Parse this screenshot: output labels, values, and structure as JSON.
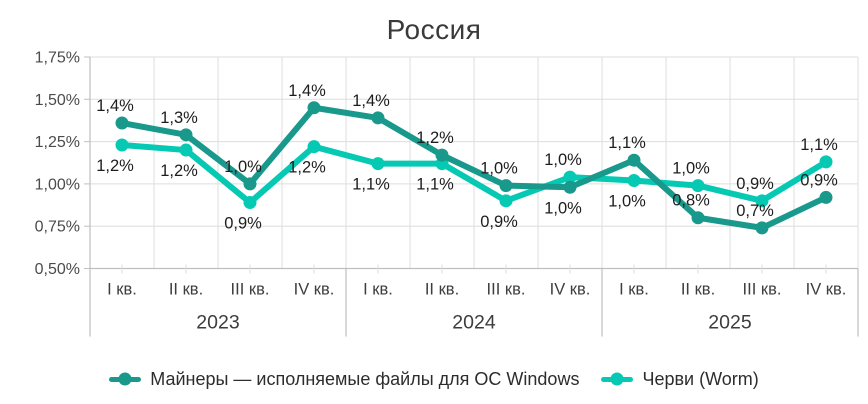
{
  "chart_data": {
    "type": "line",
    "title": "Россия",
    "xlabel": "",
    "ylabel": "",
    "ylim": [
      0.5,
      1.75
    ],
    "ytick_step": 0.25,
    "ytick_labels": [
      "0,50%",
      "0,75%",
      "1,00%",
      "1,25%",
      "1,50%",
      "1,75%"
    ],
    "quarter_labels": [
      "I кв.",
      "II кв.",
      "III кв.",
      "IV кв."
    ],
    "year_labels": [
      "2023",
      "2024",
      "2025"
    ],
    "categories": [
      "I кв. 2023",
      "II кв. 2023",
      "III кв. 2023",
      "IV кв. 2023",
      "I кв. 2024",
      "II кв. 2024",
      "III кв. 2024",
      "IV кв. 2024",
      "I кв. 2025",
      "II кв. 2025",
      "III кв. 2025",
      "IV кв. 2025"
    ],
    "grid": true,
    "legend_position": "bottom",
    "series": [
      {
        "name": "Майнеры — исполняемые файлы для ОС Windows",
        "color": "#18998B",
        "values": [
          1.4,
          1.3,
          1.0,
          1.4,
          1.4,
          1.2,
          1.0,
          1.0,
          1.1,
          0.8,
          0.7,
          0.9
        ],
        "labels": [
          "1,4%",
          "1,3%",
          "1,0%",
          "1,4%",
          "1,4%",
          "1,2%",
          "1,0%",
          "1,0%",
          "1,1%",
          "0,8%",
          "0,7%",
          "0,9%"
        ],
        "plot_values": [
          1.36,
          1.29,
          1.0,
          1.45,
          1.39,
          1.17,
          0.99,
          0.98,
          1.14,
          0.8,
          0.74,
          0.92
        ],
        "label_positions": [
          "above",
          "above",
          "above",
          "above",
          "above",
          "above",
          "above",
          "below",
          "above",
          "above",
          "above",
          "above"
        ]
      },
      {
        "name": "Черви (Worm)",
        "color": "#06C9B4",
        "values": [
          1.2,
          1.2,
          0.9,
          1.2,
          1.1,
          1.1,
          0.9,
          1.0,
          1.0,
          1.0,
          0.9,
          1.1
        ],
        "labels": [
          "1,2%",
          "1,2%",
          "0,9%",
          "1,2%",
          "1,1%",
          "1,1%",
          "0,9%",
          "1,0%",
          "1,0%",
          "1,0%",
          "0,9%",
          "1,1%"
        ],
        "plot_values": [
          1.23,
          1.2,
          0.89,
          1.22,
          1.12,
          1.12,
          0.9,
          1.04,
          1.02,
          0.99,
          0.9,
          1.13
        ],
        "label_positions": [
          "below",
          "below",
          "below",
          "below",
          "below",
          "below",
          "below",
          "above",
          "below",
          "above",
          "above",
          "above"
        ]
      }
    ],
    "colors": {
      "gridline": "#dddddd",
      "axis": "#bfbfbf",
      "tick_text": "#4b4b4b",
      "data_label_text": "#1d1d1d",
      "category_text": "#3d3d3d",
      "title_text": "#3a3a3a"
    }
  }
}
